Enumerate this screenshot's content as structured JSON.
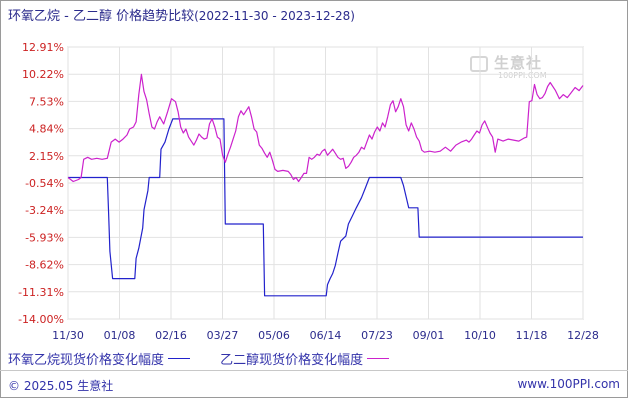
{
  "header": {
    "title": "环氧乙烷 - 乙二醇 价格趋势比较",
    "date_range": "(2022-11-30 - 2023-12-28)"
  },
  "watermark": {
    "main": "生意社",
    "sub": "100PPI.COM"
  },
  "legend": {
    "items": [
      {
        "label": "环氧乙烷现货价格变化幅度",
        "color": "#2222cc"
      },
      {
        "label": "乙二醇现货价格变化幅度",
        "color": "#cc22cc"
      }
    ]
  },
  "footer": {
    "left": "© 2025.05 生意社",
    "right": "www.100PPI.com"
  },
  "chart_data": {
    "type": "line",
    "title": "环氧乙烷 - 乙二醇 价格趋势比较",
    "y_ticks": [
      "12.91%",
      "10.22%",
      "7.53%",
      "4.84%",
      "2.15%",
      "-0.54%",
      "-3.24%",
      "-5.93%",
      "-8.62%",
      "-11.31%",
      "-14.00%"
    ],
    "ylim": [
      -14.0,
      12.91
    ],
    "x_ticks": [
      "11/30",
      "01/08",
      "02/16",
      "03/27",
      "05/06",
      "06/14",
      "07/23",
      "09/01",
      "10/10",
      "11/18",
      "12/28"
    ],
    "xlim": [
      0,
      393
    ],
    "zero_line": 0,
    "grid": true,
    "legend_position": "bottom",
    "series": [
      {
        "name": "环氧乙烷现货价格变化幅度",
        "color": "#2222cc",
        "points": [
          [
            0,
            0
          ],
          [
            30,
            0
          ],
          [
            31,
            -3.5
          ],
          [
            32,
            -7.3
          ],
          [
            34,
            -10.0
          ],
          [
            36,
            -10.0
          ],
          [
            43,
            -10.0
          ],
          [
            51,
            -10.0
          ],
          [
            52,
            -8.0
          ],
          [
            54,
            -7.0
          ],
          [
            57,
            -5.0
          ],
          [
            58,
            -3.2
          ],
          [
            61,
            -1.3
          ],
          [
            62,
            0
          ],
          [
            70,
            0
          ],
          [
            71,
            2.8
          ],
          [
            74,
            3.5
          ],
          [
            77,
            4.8
          ],
          [
            80,
            5.8
          ],
          [
            104,
            5.8
          ],
          [
            113,
            5.8
          ],
          [
            119,
            5.8
          ],
          [
            120,
            -4.6
          ],
          [
            149,
            -4.6
          ],
          [
            150,
            -11.7
          ],
          [
            186,
            -11.7
          ],
          [
            197,
            -11.7
          ],
          [
            198,
            -10.6
          ],
          [
            200,
            -10.0
          ],
          [
            202,
            -9.5
          ],
          [
            204,
            -8.7
          ],
          [
            206,
            -7.5
          ],
          [
            208,
            -6.3
          ],
          [
            212,
            -5.8
          ],
          [
            214,
            -4.6
          ],
          [
            217,
            -3.8
          ],
          [
            220,
            -3.0
          ],
          [
            224,
            -2.0
          ],
          [
            227,
            -1.0
          ],
          [
            230,
            0
          ],
          [
            254,
            0
          ],
          [
            256,
            -0.8
          ],
          [
            260,
            -3.0
          ],
          [
            267,
            -3.0
          ],
          [
            268,
            -5.9
          ],
          [
            393,
            -5.9
          ]
        ]
      },
      {
        "name": "乙二醇现货价格变化幅度",
        "color": "#cc22cc",
        "points": [
          [
            0,
            0
          ],
          [
            4,
            -0.4
          ],
          [
            8,
            -0.2
          ],
          [
            10,
            0
          ],
          [
            12,
            1.8
          ],
          [
            15,
            2.0
          ],
          [
            18,
            1.8
          ],
          [
            22,
            1.9
          ],
          [
            26,
            1.8
          ],
          [
            30,
            1.9
          ],
          [
            33,
            3.5
          ],
          [
            36,
            3.8
          ],
          [
            39,
            3.5
          ],
          [
            42,
            3.8
          ],
          [
            45,
            4.2
          ],
          [
            47,
            4.8
          ],
          [
            50,
            5.0
          ],
          [
            52,
            5.5
          ],
          [
            54,
            8.2
          ],
          [
            56,
            10.2
          ],
          [
            58,
            8.5
          ],
          [
            60,
            7.7
          ],
          [
            62,
            6.3
          ],
          [
            64,
            5.0
          ],
          [
            66,
            4.8
          ],
          [
            68,
            5.5
          ],
          [
            70,
            6.0
          ],
          [
            73,
            5.3
          ],
          [
            76,
            6.5
          ],
          [
            79,
            7.8
          ],
          [
            82,
            7.5
          ],
          [
            84,
            6.5
          ],
          [
            86,
            5.0
          ],
          [
            88,
            4.4
          ],
          [
            90,
            4.8
          ],
          [
            92,
            4.0
          ],
          [
            94,
            3.6
          ],
          [
            96,
            3.2
          ],
          [
            98,
            3.7
          ],
          [
            100,
            4.3
          ],
          [
            102,
            4.0
          ],
          [
            104,
            3.8
          ],
          [
            106,
            3.9
          ],
          [
            108,
            5.3
          ],
          [
            110,
            5.8
          ],
          [
            112,
            5.0
          ],
          [
            114,
            4.0
          ],
          [
            116,
            3.8
          ],
          [
            118,
            2.2
          ],
          [
            120,
            1.5
          ],
          [
            122,
            2.3
          ],
          [
            124,
            3.0
          ],
          [
            126,
            3.8
          ],
          [
            128,
            4.6
          ],
          [
            130,
            6.0
          ],
          [
            132,
            6.6
          ],
          [
            134,
            6.2
          ],
          [
            136,
            6.6
          ],
          [
            138,
            7.0
          ],
          [
            140,
            6.0
          ],
          [
            142,
            4.8
          ],
          [
            144,
            4.5
          ],
          [
            146,
            3.2
          ],
          [
            148,
            2.9
          ],
          [
            150,
            2.4
          ],
          [
            152,
            2.0
          ],
          [
            154,
            2.5
          ],
          [
            156,
            1.7
          ],
          [
            158,
            0.8
          ],
          [
            160,
            0.6
          ],
          [
            164,
            0.7
          ],
          [
            168,
            0.6
          ],
          [
            170,
            0.3
          ],
          [
            172,
            -0.2
          ],
          [
            174,
            0.0
          ],
          [
            176,
            -0.4
          ],
          [
            178,
            0.0
          ],
          [
            180,
            0.4
          ],
          [
            182,
            0.4
          ],
          [
            184,
            2.0
          ],
          [
            186,
            1.8
          ],
          [
            188,
            2.0
          ],
          [
            190,
            2.3
          ],
          [
            192,
            2.2
          ],
          [
            194,
            2.6
          ],
          [
            196,
            2.8
          ],
          [
            198,
            2.2
          ],
          [
            200,
            2.5
          ],
          [
            202,
            2.8
          ],
          [
            204,
            2.4
          ],
          [
            206,
            2.0
          ],
          [
            208,
            1.8
          ],
          [
            210,
            1.9
          ],
          [
            212,
            0.9
          ],
          [
            214,
            1.1
          ],
          [
            216,
            1.5
          ],
          [
            218,
            2.0
          ],
          [
            220,
            2.2
          ],
          [
            222,
            2.5
          ],
          [
            224,
            3.0
          ],
          [
            226,
            2.8
          ],
          [
            228,
            3.5
          ],
          [
            230,
            4.2
          ],
          [
            232,
            3.8
          ],
          [
            234,
            4.5
          ],
          [
            236,
            5.0
          ],
          [
            238,
            4.6
          ],
          [
            240,
            5.4
          ],
          [
            242,
            5.0
          ],
          [
            244,
            6.0
          ],
          [
            246,
            7.2
          ],
          [
            248,
            7.6
          ],
          [
            250,
            6.5
          ],
          [
            252,
            7.0
          ],
          [
            254,
            7.8
          ],
          [
            256,
            7.0
          ],
          [
            258,
            5.2
          ],
          [
            260,
            4.6
          ],
          [
            262,
            5.4
          ],
          [
            264,
            4.8
          ],
          [
            266,
            4.0
          ],
          [
            268,
            3.6
          ],
          [
            270,
            2.7
          ],
          [
            272,
            2.5
          ],
          [
            276,
            2.6
          ],
          [
            280,
            2.5
          ],
          [
            284,
            2.6
          ],
          [
            288,
            3.0
          ],
          [
            292,
            2.6
          ],
          [
            296,
            3.2
          ],
          [
            300,
            3.5
          ],
          [
            304,
            3.7
          ],
          [
            306,
            3.5
          ],
          [
            308,
            3.8
          ],
          [
            310,
            4.2
          ],
          [
            312,
            4.6
          ],
          [
            314,
            4.4
          ],
          [
            316,
            5.2
          ],
          [
            318,
            5.6
          ],
          [
            320,
            5.0
          ],
          [
            322,
            4.4
          ],
          [
            324,
            4.0
          ],
          [
            326,
            2.5
          ],
          [
            328,
            3.8
          ],
          [
            332,
            3.6
          ],
          [
            336,
            3.8
          ],
          [
            340,
            3.7
          ],
          [
            344,
            3.6
          ],
          [
            348,
            3.9
          ],
          [
            350,
            4.0
          ],
          [
            352,
            7.5
          ],
          [
            354,
            7.6
          ],
          [
            356,
            9.2
          ],
          [
            358,
            8.2
          ],
          [
            360,
            7.8
          ],
          [
            362,
            7.9
          ],
          [
            364,
            8.3
          ],
          [
            366,
            9.0
          ],
          [
            368,
            9.4
          ],
          [
            372,
            8.6
          ],
          [
            375,
            7.8
          ],
          [
            378,
            8.2
          ],
          [
            381,
            7.9
          ],
          [
            384,
            8.4
          ],
          [
            387,
            8.9
          ],
          [
            390,
            8.6
          ],
          [
            393,
            9.1
          ]
        ]
      }
    ]
  }
}
